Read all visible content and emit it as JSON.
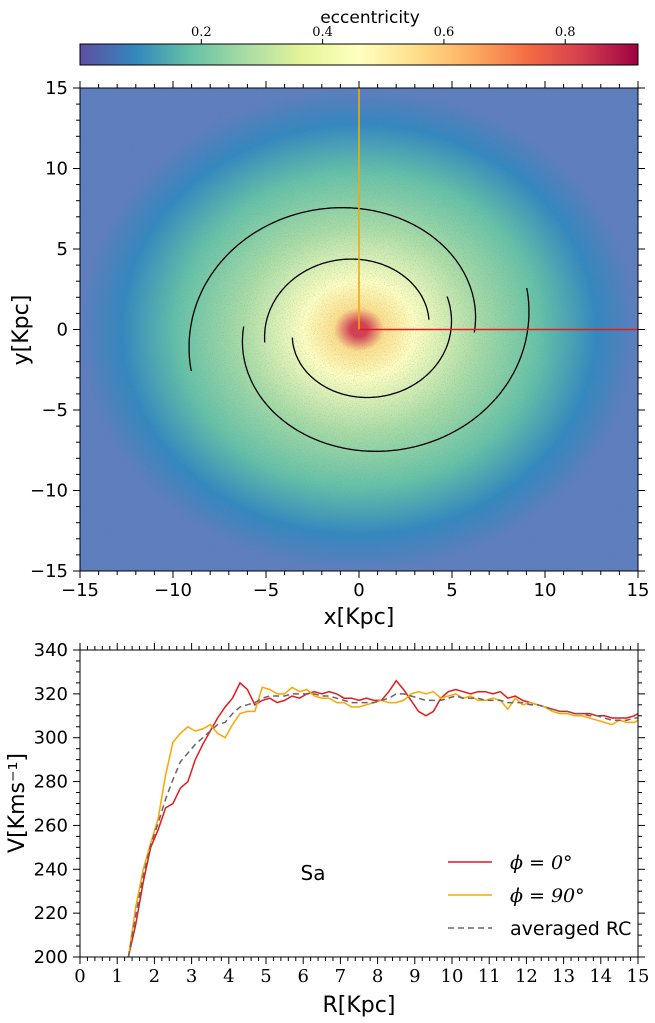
{
  "chart_data": [
    {
      "type": "scatter",
      "title": "",
      "xlabel": "x[Kpc]",
      "ylabel": "y[Kpc]",
      "xlim": [
        -15,
        15
      ],
      "ylim": [
        -15,
        15
      ],
      "x_ticks": [
        "−15",
        "−10",
        "−5",
        "0",
        "5",
        "10",
        "15"
      ],
      "y_ticks": [
        "−15",
        "−10",
        "−5",
        "0",
        "5",
        "10",
        "15"
      ],
      "x_tick_values": [
        -15,
        -10,
        -5,
        0,
        5,
        10,
        15
      ],
      "y_tick_values": [
        -15,
        -10,
        -5,
        0,
        5,
        10,
        15
      ],
      "colorbar": {
        "label": "eccentricity",
        "range": [
          0.0,
          0.92
        ],
        "ticks": [
          "0.2",
          "0.4",
          "0.6",
          "0.8"
        ],
        "tick_values": [
          0.2,
          0.4,
          0.6,
          0.8
        ],
        "colors": [
          "#5e4fa2",
          "#3288bd",
          "#66c2a5",
          "#abdda4",
          "#e6f598",
          "#ffffbf",
          "#fee08b",
          "#fdae61",
          "#f46d43",
          "#d53e4f",
          "#9e0142"
        ]
      },
      "radial_gradient": {
        "center_color": "#d53e4f",
        "inner_color": "#fee08b",
        "mid_color": "#ffffbf",
        "green_color": "#abdda4",
        "outer_color": "#66c2a5",
        "edge_color": "#3288bd",
        "background_point_color": "#5e7dbc"
      },
      "overlays": [
        {
          "name": "spiral-arm-inner",
          "type": "log-spiral",
          "color": "#000000",
          "r_start": 3.7,
          "r_end": 3.6,
          "description": "inner spiral arm"
        },
        {
          "name": "spiral-arm-outer",
          "type": "log-spiral",
          "color": "#000000",
          "r_start": 10.6,
          "r_end": 10.7,
          "description": "outer spiral arm"
        },
        {
          "name": "phi-0-line",
          "color": "#e41a1c",
          "x": [
            0,
            15
          ],
          "y": [
            0,
            0
          ]
        },
        {
          "name": "phi-90-line",
          "color": "#ffa500",
          "x": [
            0,
            0
          ],
          "y": [
            0,
            15
          ]
        }
      ]
    },
    {
      "type": "line",
      "title": "",
      "annotation": "Sa",
      "xlabel": "R[Kpc]",
      "ylabel": "V[Kms⁻¹]",
      "xlim": [
        0,
        15
      ],
      "ylim": [
        200,
        340
      ],
      "x_ticks": [
        "0",
        "1",
        "2",
        "3",
        "4",
        "5",
        "6",
        "7",
        "8",
        "9",
        "10",
        "11",
        "12",
        "13",
        "14",
        "15"
      ],
      "x_tick_values": [
        0,
        1,
        2,
        3,
        4,
        5,
        6,
        7,
        8,
        9,
        10,
        11,
        12,
        13,
        14,
        15
      ],
      "y_ticks": [
        "200",
        "220",
        "240",
        "260",
        "280",
        "300",
        "320",
        "340"
      ],
      "y_tick_values": [
        200,
        220,
        240,
        260,
        280,
        300,
        320,
        340
      ],
      "legend_position": "lower-right",
      "series": [
        {
          "name": "ϕ = 0°",
          "color": "#e41a1c",
          "dash": "",
          "x": [
            1.3,
            1.5,
            1.7,
            1.9,
            2.1,
            2.3,
            2.5,
            2.7,
            2.9,
            3.1,
            3.3,
            3.5,
            3.7,
            3.9,
            4.1,
            4.3,
            4.5,
            4.7,
            4.9,
            5.1,
            5.3,
            5.5,
            5.7,
            5.9,
            6.1,
            6.3,
            6.5,
            6.7,
            6.9,
            7.1,
            7.3,
            7.5,
            7.7,
            7.9,
            8.1,
            8.3,
            8.5,
            8.7,
            8.9,
            9.1,
            9.3,
            9.5,
            9.7,
            9.9,
            10.1,
            10.3,
            10.5,
            10.7,
            10.9,
            11.1,
            11.3,
            11.5,
            11.7,
            11.9,
            12.1,
            12.3,
            12.5,
            12.7,
            12.9,
            13.1,
            13.3,
            13.5,
            13.7,
            13.9,
            14.1,
            14.3,
            14.5,
            14.7,
            14.9,
            15.0
          ],
          "y": [
            200,
            215,
            234,
            250,
            258,
            268,
            270,
            277,
            280,
            290,
            297,
            303,
            309,
            314,
            318,
            325,
            322,
            315,
            317,
            318,
            316,
            317,
            319,
            318,
            320,
            321,
            320,
            321,
            320,
            318,
            318,
            317,
            318,
            317,
            317,
            321,
            326,
            322,
            317,
            312,
            310,
            312,
            318,
            321,
            322,
            321,
            320,
            321,
            321,
            320,
            321,
            318,
            319,
            317,
            316,
            315,
            314,
            313,
            312,
            312,
            311,
            311,
            311,
            310,
            310,
            309,
            309,
            309,
            310,
            311
          ]
        },
        {
          "name": "ϕ = 90°",
          "color": "#ffa500",
          "dash": "",
          "x": [
            1.3,
            1.5,
            1.7,
            1.9,
            2.1,
            2.3,
            2.5,
            2.7,
            2.9,
            3.1,
            3.3,
            3.5,
            3.7,
            3.9,
            4.1,
            4.3,
            4.5,
            4.7,
            4.9,
            5.1,
            5.3,
            5.5,
            5.7,
            5.9,
            6.1,
            6.3,
            6.5,
            6.7,
            6.9,
            7.1,
            7.3,
            7.5,
            7.7,
            7.9,
            8.1,
            8.3,
            8.5,
            8.7,
            8.9,
            9.1,
            9.3,
            9.5,
            9.7,
            9.9,
            10.1,
            10.3,
            10.5,
            10.7,
            10.9,
            11.1,
            11.3,
            11.5,
            11.7,
            11.9,
            12.1,
            12.3,
            12.5,
            12.7,
            12.9,
            13.1,
            13.3,
            13.5,
            13.7,
            13.9,
            14.1,
            14.3,
            14.5,
            14.7,
            14.9,
            15.0
          ],
          "y": [
            200,
            223,
            240,
            252,
            263,
            283,
            298,
            302,
            305,
            303,
            304,
            306,
            302,
            300,
            306,
            311,
            312,
            312,
            323,
            322,
            320,
            320,
            323,
            321,
            322,
            319,
            318,
            318,
            316,
            316,
            314,
            314,
            315,
            316,
            317,
            316,
            316,
            317,
            320,
            321,
            320,
            321,
            318,
            319,
            320,
            318,
            319,
            317,
            317,
            318,
            317,
            313,
            318,
            315,
            316,
            315,
            314,
            312,
            311,
            311,
            310,
            310,
            309,
            308,
            307,
            306,
            308,
            307,
            307,
            308
          ]
        },
        {
          "name": "averaged RC",
          "color": "#666666",
          "dash": "6,4",
          "x": [
            1.3,
            1.5,
            1.7,
            1.9,
            2.1,
            2.3,
            2.5,
            2.7,
            2.9,
            3.1,
            3.3,
            3.5,
            3.7,
            3.9,
            4.1,
            4.3,
            4.5,
            4.7,
            4.9,
            5.1,
            5.3,
            5.5,
            5.7,
            5.9,
            6.1,
            6.3,
            6.5,
            6.7,
            6.9,
            7.1,
            7.3,
            7.5,
            7.7,
            7.9,
            8.1,
            8.3,
            8.5,
            8.7,
            8.9,
            9.1,
            9.3,
            9.5,
            9.7,
            9.9,
            10.1,
            10.3,
            10.5,
            10.7,
            10.9,
            11.1,
            11.3,
            11.5,
            11.7,
            11.9,
            12.1,
            12.3,
            12.5,
            12.7,
            12.9,
            13.1,
            13.3,
            13.5,
            13.7,
            13.9,
            14.1,
            14.3,
            14.5,
            14.7,
            14.9,
            15.0
          ],
          "y": [
            200,
            219,
            237,
            251,
            261,
            272,
            281,
            289,
            293,
            297,
            300,
            303,
            306,
            307,
            311,
            314,
            315,
            316,
            318,
            319,
            319,
            319,
            320,
            320,
            320,
            320,
            319,
            319,
            318,
            317,
            316,
            316,
            316,
            316,
            317,
            318,
            320,
            320,
            319,
            318,
            317,
            317,
            317,
            318,
            319,
            318,
            318,
            318,
            317,
            317,
            317,
            316,
            316,
            316,
            315,
            315,
            314,
            313,
            312,
            312,
            311,
            311,
            310,
            310,
            309,
            308,
            308,
            308,
            309,
            309
          ]
        }
      ]
    }
  ]
}
